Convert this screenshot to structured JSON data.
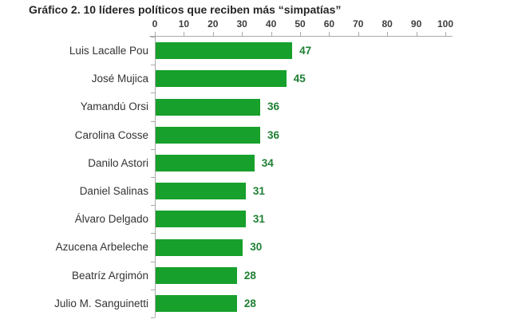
{
  "chart_data": {
    "type": "bar",
    "orientation": "horizontal",
    "title": "Gráfico 2. 10 líderes políticos que reciben más “simpatías”",
    "categories": [
      "Luis Lacalle Pou",
      "José Mujica",
      "Yamandú Orsi",
      "Carolina Cosse",
      "Danilo Astori",
      "Daniel Salinas",
      "Álvaro Delgado",
      "Azucena Arbeleche",
      "Beatríz Argimón",
      "Julio M. Sanguinetti"
    ],
    "values": [
      47,
      45,
      36,
      36,
      34,
      31,
      31,
      30,
      28,
      28
    ],
    "x_ticks": [
      0,
      10,
      20,
      30,
      40,
      50,
      60,
      70,
      80,
      90,
      100
    ],
    "xlim": [
      0,
      100
    ],
    "xlabel": "",
    "ylabel": "",
    "grid": false,
    "legend": false,
    "data_labels": true,
    "axis_position": "top",
    "colors": {
      "bar": "#17a02b",
      "value_label": "#1e7f33",
      "axis_line": "#a9a9a9",
      "tick_label": "#3d3d3d",
      "category_label": "#333333",
      "title": "#262626",
      "background": "#ffffff"
    }
  }
}
